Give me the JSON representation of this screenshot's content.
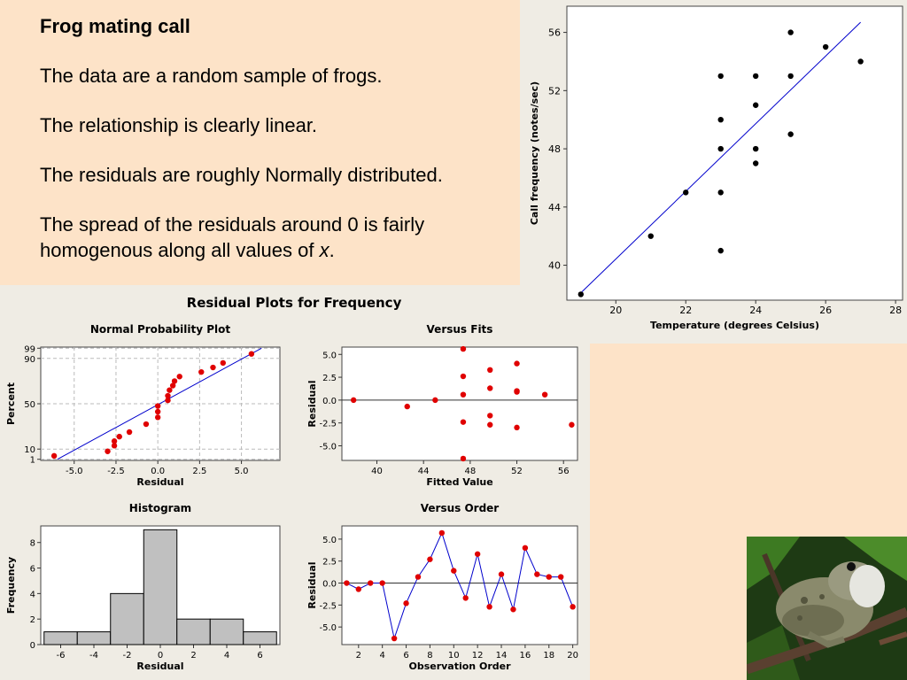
{
  "slide": {
    "title": "Frog mating call",
    "bullets": [
      "The data are a random sample of frogs.",
      "The relationship is clearly linear.",
      "The residuals are roughly Normally distributed."
    ],
    "last_bullet_main": "The spread of the residuals around 0 is fairly homogenous along all values of ",
    "last_bullet_var": "x",
    "last_bullet_end": "."
  },
  "colors": {
    "panel": "#fde3c8",
    "background": "#efece4",
    "fit_line": "#0000cc",
    "residual_point": "#e00000",
    "bar_fill": "#c0c0c0"
  },
  "photo": {
    "icon": "frog-photo"
  },
  "chart_data": [
    {
      "type": "scatter",
      "title": "",
      "xlabel": "Temperature (degrees Celsius)",
      "ylabel": "Call frequency (notes/sec)",
      "xlim": [
        18.6,
        28.2
      ],
      "ylim": [
        37.6,
        57.8
      ],
      "xticks": [
        20,
        22,
        24,
        26,
        28
      ],
      "yticks": [
        40,
        44,
        48,
        52,
        56
      ],
      "points": [
        [
          19,
          38
        ],
        [
          21,
          42
        ],
        [
          22,
          45
        ],
        [
          23,
          41
        ],
        [
          23,
          45
        ],
        [
          23,
          48
        ],
        [
          23,
          50
        ],
        [
          23,
          53
        ],
        [
          24,
          47
        ],
        [
          24,
          48
        ],
        [
          24,
          51
        ],
        [
          24,
          53
        ],
        [
          25,
          49
        ],
        [
          25,
          53
        ],
        [
          25,
          56
        ],
        [
          26,
          55
        ],
        [
          27,
          54
        ]
      ],
      "fit_line": [
        [
          19,
          38.1
        ],
        [
          27,
          56.7
        ]
      ]
    },
    {
      "type": "scatter",
      "group_title": "Residual Plots for Frequency",
      "title": "Normal Probability Plot",
      "xlabel": "Residual",
      "ylabel": "Percent",
      "xticks": [
        -5.0,
        -2.5,
        0.0,
        2.5,
        5.0
      ],
      "xticks_labels": [
        "-5.0",
        "-2.5",
        "0.0",
        "2.5",
        "5.0"
      ],
      "yticks": [
        1,
        10,
        50,
        90,
        99
      ],
      "points": [
        [
          -6.2,
          4
        ],
        [
          -3.0,
          8
        ],
        [
          -2.6,
          13
        ],
        [
          -2.6,
          17
        ],
        [
          -2.3,
          21
        ],
        [
          -1.7,
          25
        ],
        [
          -0.7,
          32
        ],
        [
          0.0,
          38
        ],
        [
          0.0,
          43
        ],
        [
          0.0,
          48
        ],
        [
          0.6,
          53
        ],
        [
          0.6,
          57
        ],
        [
          0.7,
          62
        ],
        [
          0.9,
          66
        ],
        [
          1.0,
          70
        ],
        [
          1.3,
          74
        ],
        [
          2.6,
          78
        ],
        [
          3.3,
          82
        ],
        [
          3.9,
          86
        ],
        [
          5.6,
          94
        ]
      ],
      "fit_line": [
        [
          -6.0,
          1
        ],
        [
          6.2,
          99
        ]
      ]
    },
    {
      "type": "scatter",
      "title": "Versus Fits",
      "xlabel": "Fitted Value",
      "ylabel": "Residual",
      "xlim": [
        37,
        57.2
      ],
      "ylim": [
        -6.6,
        5.8
      ],
      "xticks": [
        40,
        44,
        48,
        52,
        56
      ],
      "yticks": [
        5.0,
        2.5,
        0.0,
        -2.5,
        -5.0
      ],
      "yticks_labels": [
        "5.0",
        "2.5",
        "0.0",
        "-2.5",
        "-5.0"
      ],
      "points": [
        [
          38,
          0
        ],
        [
          42.6,
          -0.7
        ],
        [
          45,
          0
        ],
        [
          47.4,
          5.6
        ],
        [
          47.4,
          2.6
        ],
        [
          47.4,
          0.6
        ],
        [
          47.4,
          -2.4
        ],
        [
          47.4,
          -6.4
        ],
        [
          49.7,
          3.3
        ],
        [
          49.7,
          1.3
        ],
        [
          49.7,
          -1.7
        ],
        [
          49.7,
          -2.7
        ],
        [
          52,
          4.0
        ],
        [
          52,
          1.0
        ],
        [
          52,
          0.9
        ],
        [
          52,
          -3.0
        ],
        [
          54.4,
          0.6
        ],
        [
          56.7,
          -2.7
        ]
      ],
      "reference_line": 0
    },
    {
      "type": "bar",
      "title": "Histogram",
      "xlabel": "Residual",
      "ylabel": "Frequency",
      "xlim": [
        -7.2,
        7.2
      ],
      "ylim": [
        0,
        9.3
      ],
      "xticks": [
        -6,
        -4,
        -2,
        0,
        2,
        4,
        6
      ],
      "yticks": [
        0,
        2,
        4,
        6,
        8
      ],
      "bins": [
        [
          -7,
          -5
        ],
        [
          -5,
          -3
        ],
        [
          -3,
          -1
        ],
        [
          -1,
          1
        ],
        [
          1,
          3
        ],
        [
          3,
          5
        ],
        [
          5,
          7
        ]
      ],
      "values": [
        1,
        1,
        4,
        9,
        2,
        2,
        1
      ]
    },
    {
      "type": "line",
      "title": "Versus Order",
      "xlabel": "Observation Order",
      "ylabel": "Residual",
      "xlim": [
        0.6,
        20.4
      ],
      "ylim": [
        -7.0,
        6.5
      ],
      "xticks": [
        2,
        4,
        6,
        8,
        10,
        12,
        14,
        16,
        18,
        20
      ],
      "yticks": [
        5.0,
        2.5,
        0.0,
        -2.5,
        -5.0
      ],
      "yticks_labels": [
        "5.0",
        "2.5",
        "0.0",
        "-2.5",
        "-5.0"
      ],
      "x": [
        1,
        2,
        3,
        4,
        5,
        6,
        7,
        8,
        9,
        10,
        11,
        12,
        13,
        14,
        15,
        16,
        17,
        18,
        19,
        20
      ],
      "values": [
        0,
        -0.7,
        0,
        0,
        -6.3,
        -2.3,
        0.7,
        2.7,
        5.7,
        1.4,
        -1.7,
        3.3,
        -2.7,
        1.0,
        -3.0,
        4.0,
        1.0,
        0.7,
        0.7,
        -2.7
      ],
      "reference_line": 0
    }
  ]
}
